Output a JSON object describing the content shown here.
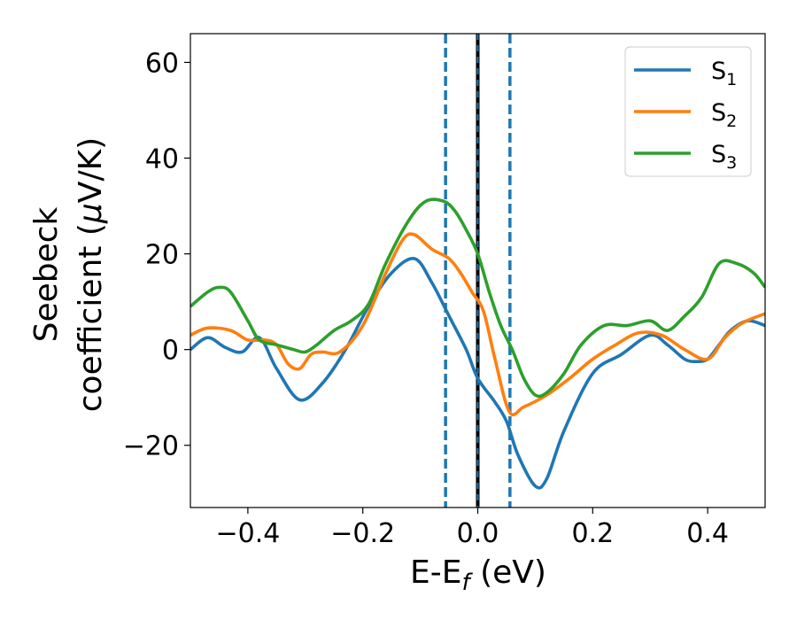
{
  "chart_data": {
    "type": "line",
    "xlabel": {
      "main": "E-E",
      "sub": "f",
      "unit": " (eV)"
    },
    "ylabel": {
      "line1": "Seebeck",
      "line2_prefix": "coefficient  (",
      "mu": "μ",
      "line2_suffix": "V/K)"
    },
    "xlim": [
      -0.5,
      0.5
    ],
    "ylim": [
      -33,
      66
    ],
    "xticks": [
      -0.4,
      -0.2,
      0.0,
      0.2,
      0.4
    ],
    "xtick_labels": [
      "−0.4",
      "−0.2",
      "0.0",
      "0.2",
      "0.4"
    ],
    "yticks": [
      -20,
      0,
      20,
      40,
      60
    ],
    "ytick_labels": [
      "−20",
      "0",
      "20",
      "40",
      "60"
    ],
    "grid": false,
    "legend_position": "top-right",
    "vlines": [
      {
        "x": -0.056,
        "style": "dashed",
        "color": "#1f77b4"
      },
      {
        "x": 0.0,
        "style": "solid-black-dashed",
        "color": "#000000"
      },
      {
        "x": 0.056,
        "style": "dashed",
        "color": "#1f77b4"
      }
    ],
    "series": [
      {
        "name": "S",
        "sub": "1",
        "color": "#1f77b4",
        "x": [
          -0.5,
          -0.47,
          -0.44,
          -0.41,
          -0.38,
          -0.35,
          -0.31,
          -0.27,
          -0.23,
          -0.19,
          -0.15,
          -0.11,
          -0.08,
          -0.05,
          -0.02,
          0.0,
          0.03,
          0.05,
          0.07,
          0.1,
          0.12,
          0.15,
          0.2,
          0.25,
          0.3,
          0.33,
          0.36,
          0.38,
          0.4,
          0.42,
          0.44,
          0.47,
          0.5
        ],
        "y": [
          0,
          2.5,
          0.5,
          -0.5,
          2.5,
          -4,
          -10.5,
          -7,
          0,
          9,
          16,
          19,
          14,
          7,
          0,
          -6,
          -11,
          -15,
          -22,
          -28.5,
          -27,
          -17,
          -5,
          -1,
          3,
          1,
          -2,
          -2.5,
          -2,
          1,
          4,
          6,
          5
        ]
      },
      {
        "name": "S",
        "sub": "2",
        "color": "#ff7f0e",
        "x": [
          -0.5,
          -0.47,
          -0.43,
          -0.4,
          -0.37,
          -0.35,
          -0.33,
          -0.31,
          -0.29,
          -0.27,
          -0.24,
          -0.2,
          -0.16,
          -0.13,
          -0.11,
          -0.08,
          -0.05,
          -0.03,
          -0.01,
          0.01,
          0.03,
          0.055,
          0.08,
          0.12,
          0.16,
          0.2,
          0.24,
          0.28,
          0.32,
          0.36,
          0.4,
          0.43,
          0.46,
          0.5
        ],
        "y": [
          3,
          4.5,
          4,
          2,
          2,
          1,
          -3,
          -4,
          -1,
          -0.5,
          -0.5,
          5,
          16,
          23,
          24,
          21,
          19,
          16,
          12,
          8,
          -2,
          -13,
          -12,
          -9.5,
          -6,
          -2,
          1,
          3.5,
          3,
          0,
          -2,
          2.5,
          5.5,
          7.5
        ]
      },
      {
        "name": "S",
        "sub": "3",
        "color": "#2ca02c",
        "x": [
          -0.5,
          -0.47,
          -0.45,
          -0.43,
          -0.4,
          -0.38,
          -0.35,
          -0.32,
          -0.3,
          -0.28,
          -0.25,
          -0.22,
          -0.19,
          -0.16,
          -0.12,
          -0.09,
          -0.06,
          -0.04,
          -0.02,
          0.0,
          0.02,
          0.04,
          0.06,
          0.08,
          0.1,
          0.12,
          0.15,
          0.18,
          0.22,
          0.26,
          0.3,
          0.33,
          0.36,
          0.39,
          0.42,
          0.45,
          0.48,
          0.5
        ],
        "y": [
          9,
          12,
          13,
          12,
          6,
          2,
          1,
          0,
          -0.5,
          1,
          4,
          6,
          9.5,
          18,
          27,
          31,
          31,
          29,
          25,
          20,
          12,
          5,
          0,
          -6,
          -9.5,
          -9,
          -5,
          1,
          5,
          5,
          6,
          4,
          7,
          11,
          18,
          18,
          16,
          13
        ]
      }
    ]
  }
}
